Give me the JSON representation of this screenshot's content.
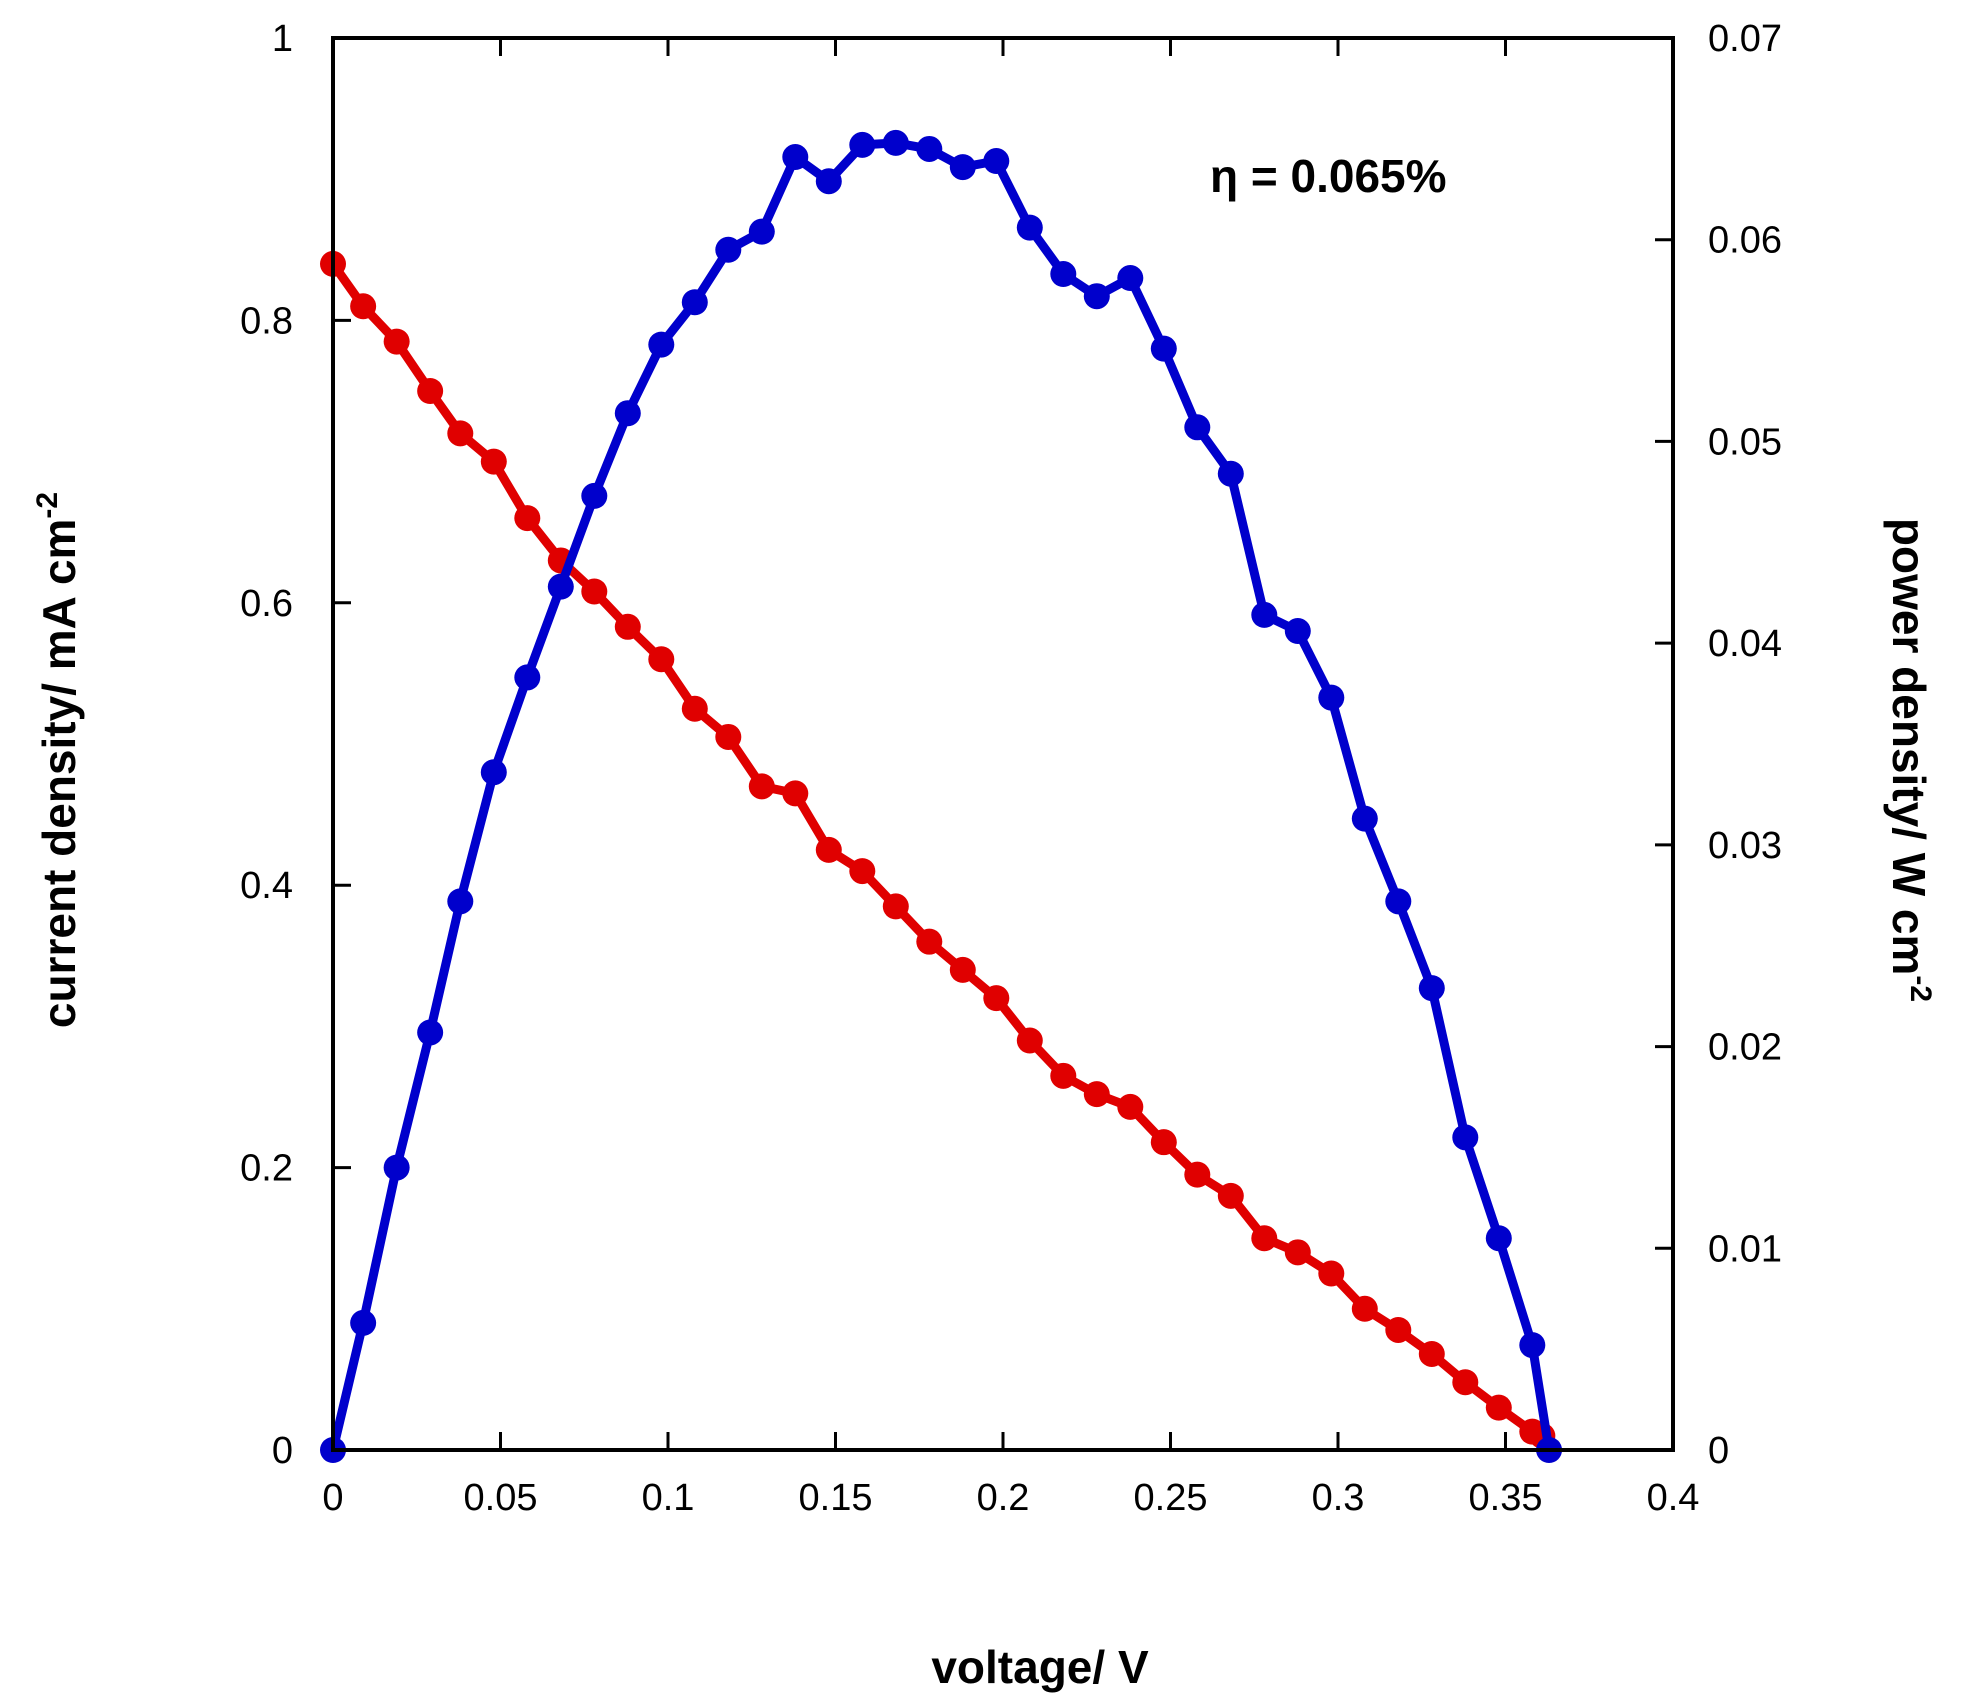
{
  "chart_data": {
    "type": "line",
    "xlabel": "voltage/ V",
    "ylabel": "current density/ mA cm",
    "ylabel_sup": "-2",
    "y2label": "power density/ W cm",
    "y2label_sup": "-2",
    "annotation": "η = 0.065%",
    "xlim": [
      0,
      0.4
    ],
    "ylim": [
      0,
      1
    ],
    "y2lim": [
      0,
      0.07
    ],
    "grid": false,
    "xticks": [
      "0",
      "0.05",
      "0.1",
      "0.15",
      "0.2",
      "0.25",
      "0.3",
      "0.35",
      "0.4"
    ],
    "yticks": [
      "0",
      "0.2",
      "0.4",
      "0.6",
      "0.8",
      "1"
    ],
    "y2ticks": [
      "0",
      "0.01",
      "0.02",
      "0.03",
      "0.04",
      "0.05",
      "0.06",
      "0.07"
    ],
    "series": [
      {
        "axis": "left",
        "color": "#e00000",
        "x": [
          0,
          0.009,
          0.019,
          0.029,
          0.038,
          0.048,
          0.058,
          0.068,
          0.078,
          0.088,
          0.098,
          0.108,
          0.118,
          0.128,
          0.138,
          0.148,
          0.158,
          0.168,
          0.178,
          0.188,
          0.198,
          0.208,
          0.218,
          0.228,
          0.238,
          0.248,
          0.258,
          0.268,
          0.278,
          0.288,
          0.298,
          0.308,
          0.318,
          0.328,
          0.338,
          0.348,
          0.358,
          0.361
        ],
        "values": [
          0.84,
          0.81,
          0.785,
          0.75,
          0.72,
          0.7,
          0.66,
          0.63,
          0.608,
          0.583,
          0.56,
          0.525,
          0.505,
          0.47,
          0.465,
          0.425,
          0.41,
          0.385,
          0.36,
          0.34,
          0.32,
          0.29,
          0.265,
          0.252,
          0.243,
          0.218,
          0.195,
          0.18,
          0.15,
          0.14,
          0.125,
          0.1,
          0.085,
          0.068,
          0.048,
          0.03,
          0.013,
          0.01
        ]
      },
      {
        "axis": "right",
        "color": "#0000cc",
        "x": [
          0,
          0.009,
          0.019,
          0.029,
          0.038,
          0.048,
          0.058,
          0.068,
          0.078,
          0.088,
          0.098,
          0.108,
          0.118,
          0.128,
          0.138,
          0.148,
          0.158,
          0.168,
          0.178,
          0.188,
          0.198,
          0.208,
          0.218,
          0.228,
          0.238,
          0.248,
          0.258,
          0.268,
          0.278,
          0.288,
          0.298,
          0.308,
          0.318,
          0.328,
          0.338,
          0.348,
          0.358,
          0.363
        ],
        "values": [
          0,
          0.0063,
          0.014,
          0.0207,
          0.0272,
          0.0336,
          0.0383,
          0.0428,
          0.0473,
          0.0514,
          0.0548,
          0.0569,
          0.0595,
          0.0604,
          0.0641,
          0.0629,
          0.0647,
          0.0648,
          0.0645,
          0.0636,
          0.0639,
          0.0606,
          0.0583,
          0.0572,
          0.0581,
          0.0546,
          0.0507,
          0.0484,
          0.0414,
          0.0406,
          0.0373,
          0.0313,
          0.0272,
          0.0229,
          0.0155,
          0.0105,
          0.0052,
          0
        ]
      }
    ]
  }
}
